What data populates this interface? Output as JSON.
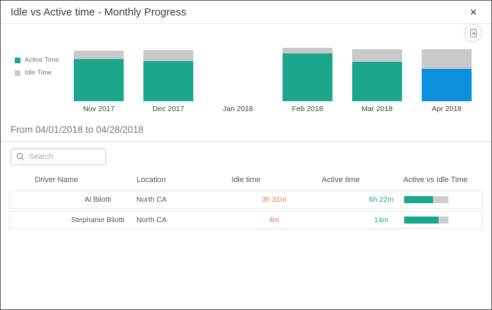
{
  "modal": {
    "title": "Idle vs Active time - Monthly Progress",
    "close_glyph": "✕"
  },
  "colors": {
    "active": "#1AA78C",
    "idle": "#C9C9C9",
    "selected": "#0A90DC",
    "idle_time_text": "#E8744A",
    "active_time_text": "#1AA78C"
  },
  "legend": {
    "items": [
      {
        "label": "Active Time",
        "color": "#1AA78C"
      },
      {
        "label": "Idle Time",
        "color": "#C9C9C9"
      }
    ]
  },
  "chart_data": {
    "type": "bar",
    "stacked": true,
    "categories": [
      "Nov 2017",
      "Dec 2017",
      "Jan 2018",
      "Feb 2018",
      "Mar 2018",
      "Apr 2018"
    ],
    "series": [
      {
        "name": "Active Time",
        "values": [
          79,
          75,
          0,
          89,
          74,
          61
        ]
      },
      {
        "name": "Idle Time",
        "values": [
          16,
          21,
          0,
          11,
          24,
          36
        ]
      }
    ],
    "ylim": [
      0,
      100
    ],
    "legend_position": "left",
    "selected_category": "Apr 2018",
    "selected_color": "#0A90DC",
    "title": "",
    "xlabel": "",
    "ylabel": ""
  },
  "period_heading": "From 04/01/2018 to 04/28/2018",
  "search": {
    "placeholder": "Search"
  },
  "table": {
    "columns": [
      "Driver Name",
      "Location",
      "Idle time",
      "Active time",
      "Active vs Idle Time"
    ],
    "rows": [
      {
        "driver_name": "Al Bilotti",
        "location": "North CA",
        "idle_time": "3h 31m",
        "active_time": "6h 22m",
        "active_pct": 64
      },
      {
        "driver_name": "Stephanie Bilotti",
        "location": "North CA",
        "idle_time": "4m",
        "active_time": "14m",
        "active_pct": 78
      }
    ]
  }
}
